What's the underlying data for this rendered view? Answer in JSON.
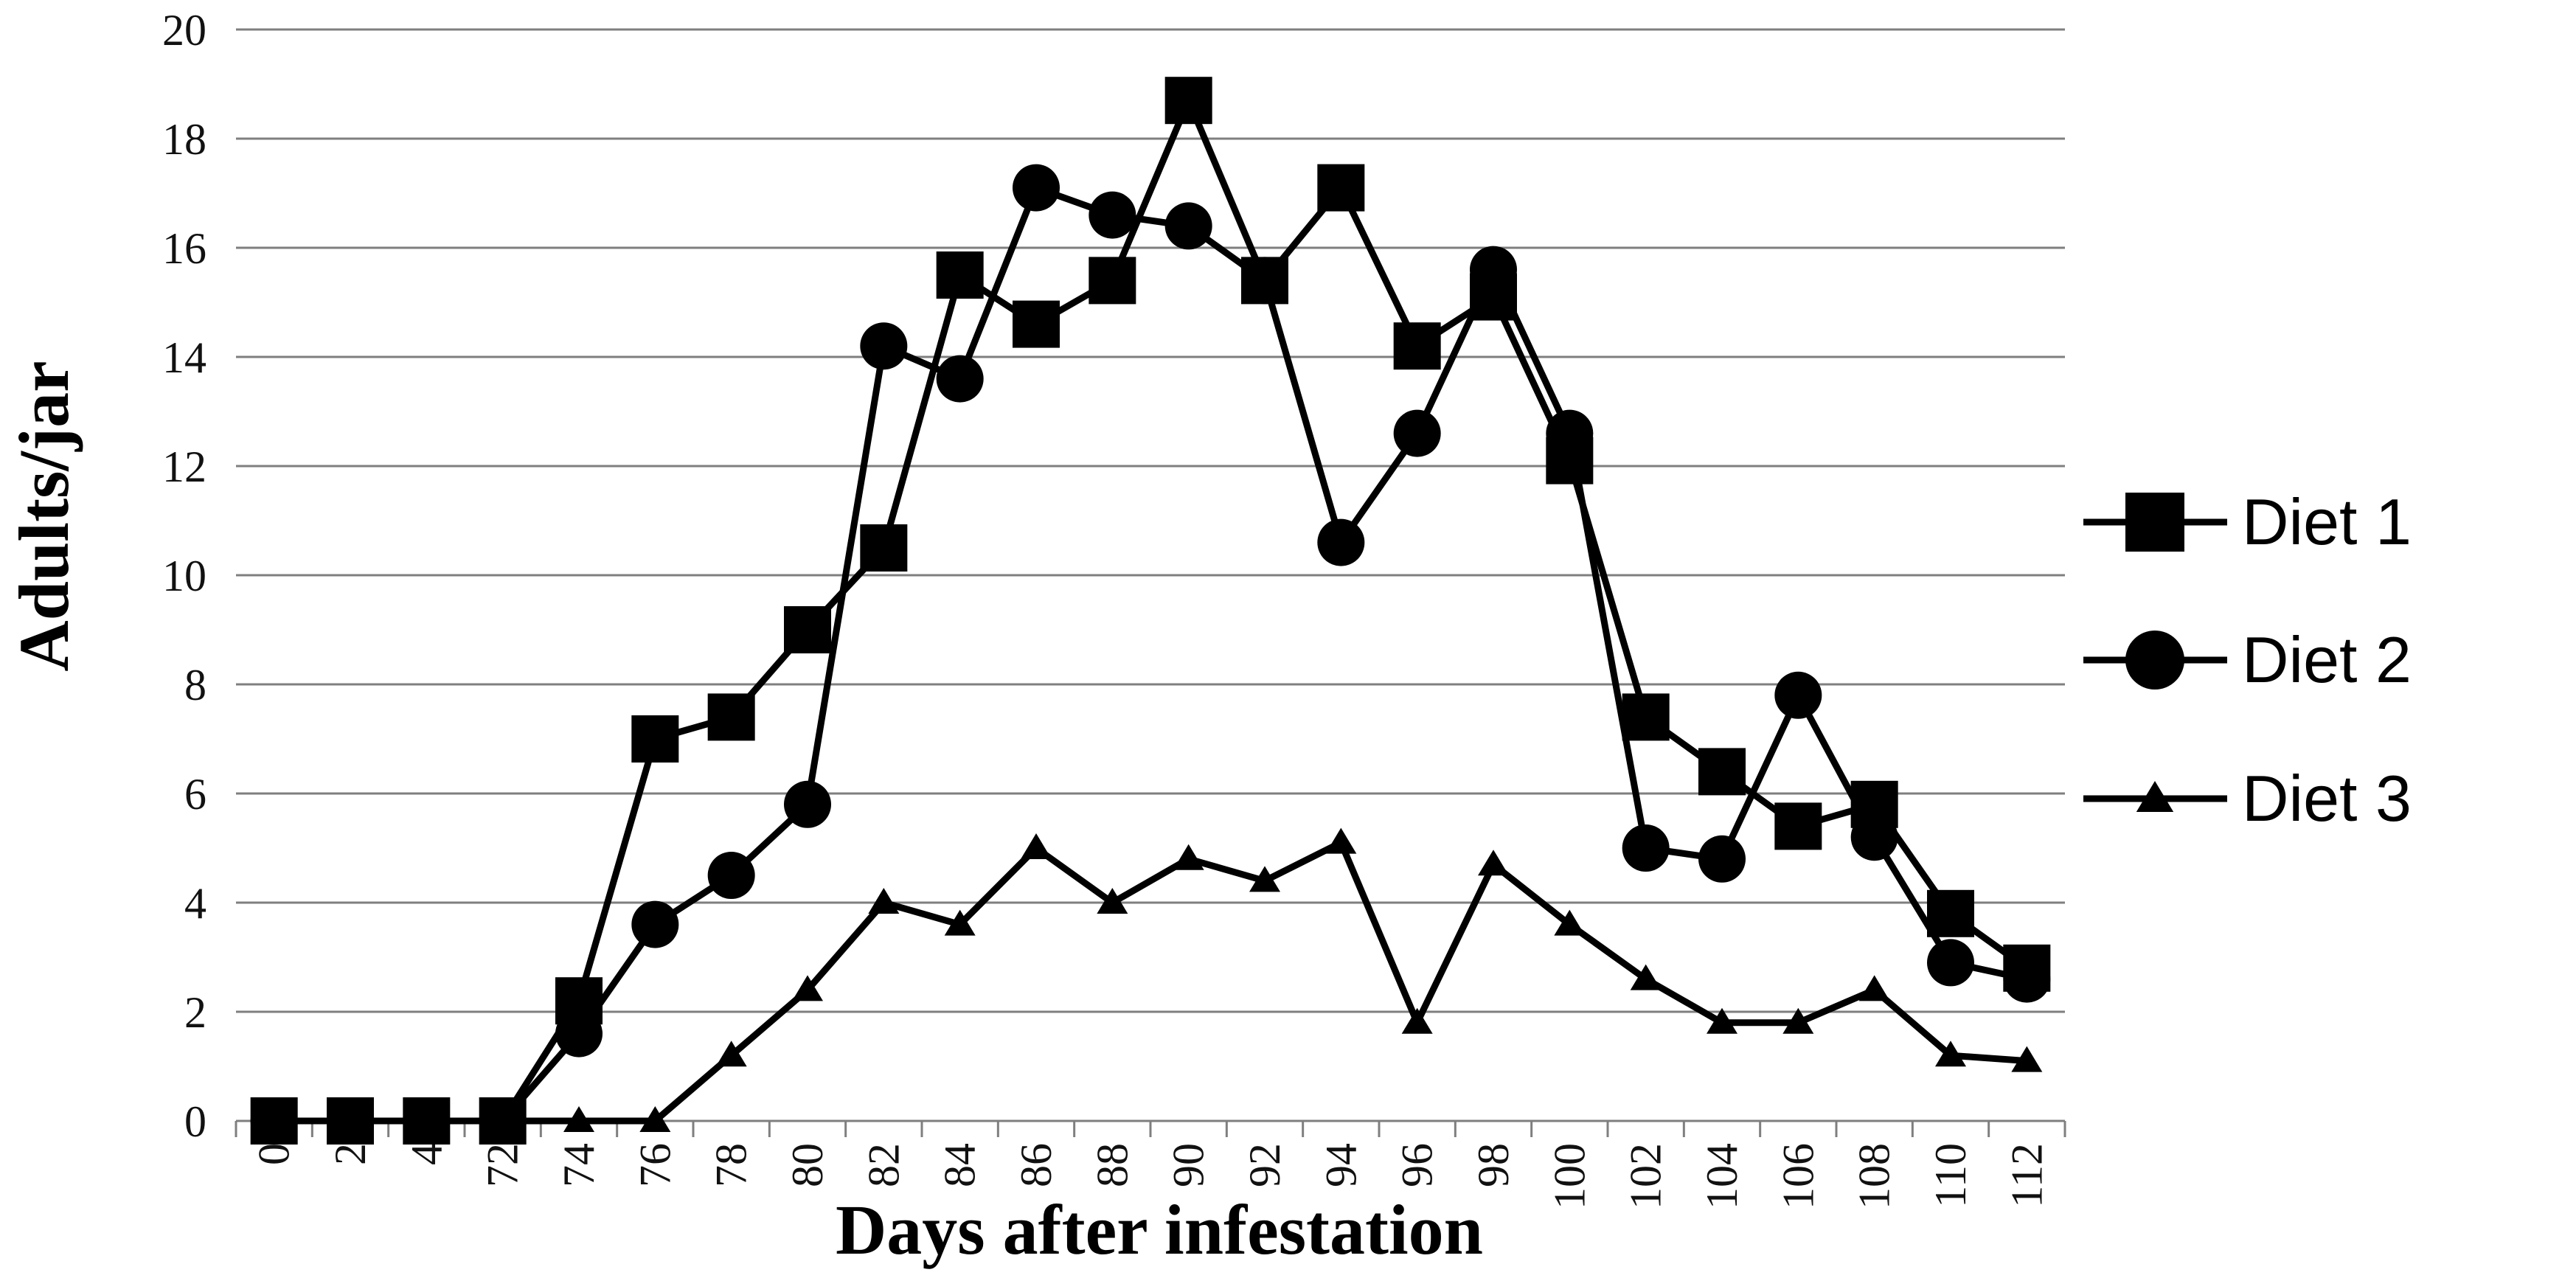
{
  "chart_data": {
    "type": "line",
    "title": "",
    "xlabel": "Days after infestation",
    "ylabel": "Adults/jar",
    "x": [
      "0",
      "2",
      "4",
      "72",
      "74",
      "76",
      "78",
      "80",
      "82",
      "84",
      "86",
      "88",
      "90",
      "92",
      "94",
      "96",
      "98",
      "100",
      "102",
      "104",
      "106",
      "108",
      "110",
      "112"
    ],
    "ylim": [
      0,
      20
    ],
    "yticks": [
      "0",
      "2",
      "4",
      "6",
      "8",
      "10",
      "12",
      "14",
      "16",
      "18",
      "20"
    ],
    "grid": "horizontal",
    "legend_position": "right",
    "series": [
      {
        "name": "Diet 1",
        "marker": "square",
        "values": [
          0,
          0,
          0,
          0,
          2.2,
          7.0,
          7.4,
          9.0,
          10.5,
          15.5,
          14.6,
          15.4,
          18.7,
          15.4,
          17.1,
          14.2,
          15.1,
          12.1,
          7.4,
          6.4,
          5.4,
          5.8,
          3.8,
          2.8
        ]
      },
      {
        "name": "Diet 2",
        "marker": "circle",
        "values": [
          0,
          0,
          0,
          0,
          1.6,
          3.6,
          4.5,
          5.8,
          14.2,
          13.6,
          17.1,
          16.6,
          16.4,
          15.4,
          10.6,
          12.6,
          15.6,
          12.6,
          5.0,
          4.8,
          7.8,
          5.2,
          2.9,
          2.6
        ]
      },
      {
        "name": "Diet 3",
        "marker": "triangle",
        "values": [
          0,
          0,
          0,
          0,
          0,
          0,
          1.2,
          2.4,
          4.0,
          3.6,
          5.0,
          4.0,
          4.8,
          4.4,
          5.1,
          1.8,
          4.7,
          3.6,
          2.6,
          1.8,
          1.8,
          2.4,
          1.2,
          1.1
        ]
      }
    ],
    "line_color": "#000000",
    "grid_color": "#7f7f7f"
  }
}
